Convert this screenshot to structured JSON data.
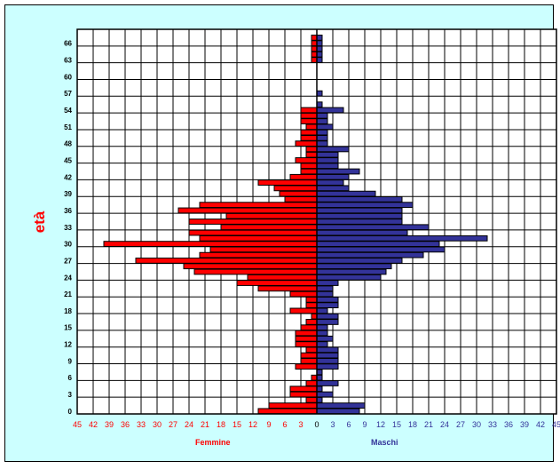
{
  "chart_data": {
    "type": "bar",
    "orientation": "horizontal",
    "chart_kind": "population-pyramid",
    "ylabel": "età",
    "series": [
      {
        "name": "Femmine",
        "color": "#ff0000"
      },
      {
        "name": "Maschi",
        "color": "#333399"
      }
    ],
    "x_ticks_left": [
      "45",
      "42",
      "39",
      "36",
      "33",
      "30",
      "27",
      "24",
      "21",
      "18",
      "15",
      "12",
      "9",
      "6",
      "3",
      "0"
    ],
    "x_ticks_right": [
      "3",
      "6",
      "9",
      "12",
      "15",
      "18",
      "21",
      "24",
      "27",
      "30",
      "33",
      "36",
      "39",
      "42",
      "45"
    ],
    "x_range": [
      -45,
      45
    ],
    "y_range": [
      0,
      69
    ],
    "y_ticks": [
      "0",
      "3",
      "6",
      "9",
      "12",
      "15",
      "18",
      "21",
      "24",
      "27",
      "30",
      "33",
      "36",
      "39",
      "42",
      "45",
      "48",
      "51",
      "54",
      "57",
      "60",
      "63",
      "66"
    ],
    "grid": true,
    "ages": [
      0,
      1,
      2,
      3,
      4,
      5,
      6,
      7,
      8,
      9,
      10,
      11,
      12,
      13,
      14,
      15,
      16,
      17,
      18,
      19,
      20,
      21,
      22,
      23,
      24,
      25,
      26,
      27,
      28,
      29,
      30,
      31,
      32,
      33,
      34,
      35,
      36,
      37,
      38,
      39,
      40,
      41,
      42,
      43,
      44,
      45,
      46,
      47,
      48,
      49,
      50,
      51,
      52,
      53,
      54,
      55,
      56,
      57,
      58,
      59,
      60,
      61,
      62,
      63,
      64,
      65,
      66,
      67
    ],
    "femmine": [
      11,
      9,
      2,
      5,
      5,
      2,
      1,
      0,
      4,
      3,
      3,
      2,
      4,
      4,
      4,
      3,
      2,
      1,
      5,
      2,
      2,
      5,
      11,
      15,
      13,
      23,
      25,
      34,
      22,
      20,
      40,
      22,
      24,
      18,
      24,
      17,
      26,
      22,
      6,
      7,
      8,
      11,
      5,
      3,
      3,
      4,
      2,
      2,
      4,
      3,
      3,
      2,
      3,
      3,
      3,
      0,
      0,
      0,
      0,
      0,
      0,
      0,
      0,
      1,
      1,
      1,
      1,
      1
    ],
    "maschi": [
      8,
      9,
      1,
      3,
      1,
      4,
      1,
      1,
      4,
      4,
      4,
      4,
      2,
      3,
      2,
      2,
      4,
      4,
      2,
      4,
      4,
      3,
      3,
      4,
      12,
      13,
      14,
      16,
      20,
      24,
      23,
      32,
      17,
      21,
      16,
      16,
      16,
      18,
      16,
      11,
      6,
      5,
      6,
      8,
      4,
      4,
      4,
      6,
      2,
      2,
      2,
      3,
      2,
      2,
      5,
      1,
      0,
      1,
      0,
      0,
      0,
      0,
      0,
      1,
      1,
      1,
      1,
      1
    ]
  },
  "labels": {
    "ylabel": "età",
    "female": "Femmine",
    "male": "Maschi"
  }
}
